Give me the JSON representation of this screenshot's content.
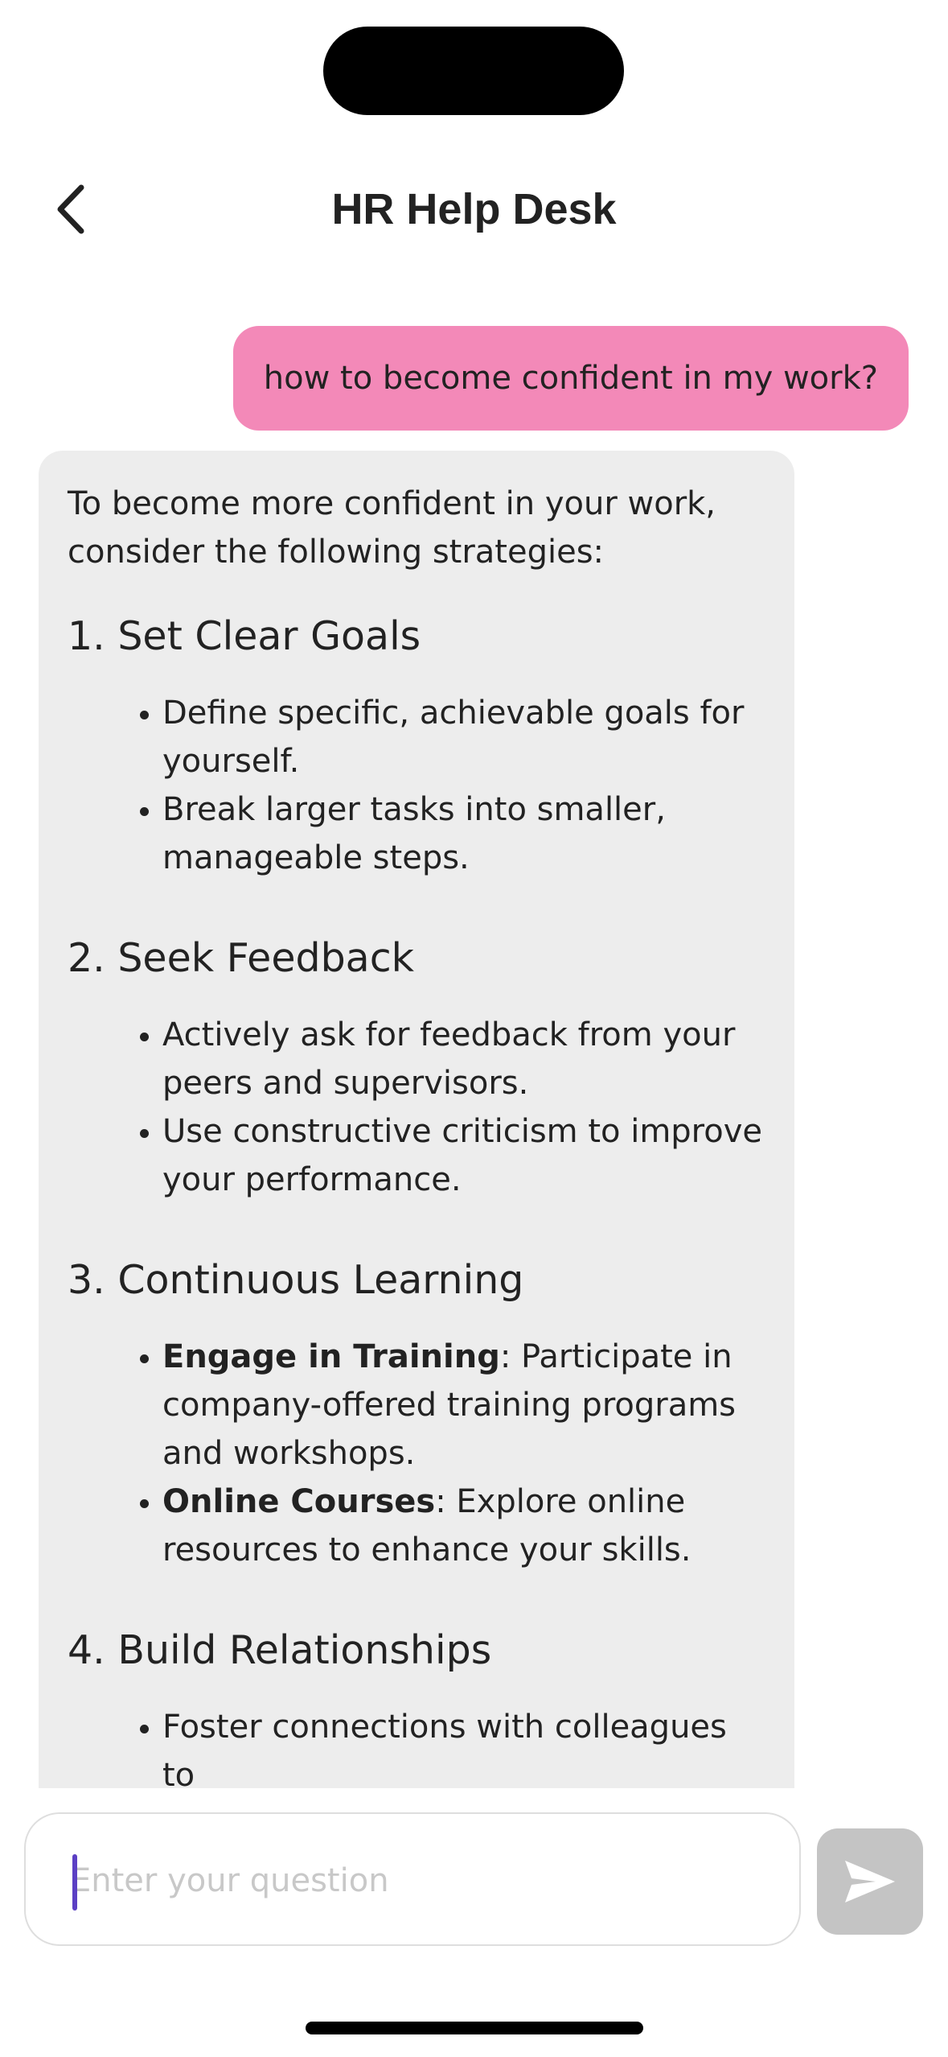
{
  "header": {
    "title": "HR Help Desk",
    "back_icon": "chevron-left-icon"
  },
  "conversation": {
    "user_message": "how to become confident in my work?",
    "bot_message": {
      "intro": "To become more confident in your work, consider the following strategies:",
      "sections": [
        {
          "heading": "1. Set Clear Goals",
          "bullets": [
            {
              "bold": "",
              "text": "Define specific, achievable goals for yourself."
            },
            {
              "bold": "",
              "text": "Break larger tasks into smaller, manageable steps."
            }
          ]
        },
        {
          "heading": "2. Seek Feedback",
          "bullets": [
            {
              "bold": "",
              "text": "Actively ask for feedback from your peers and supervisors."
            },
            {
              "bold": "",
              "text": "Use constructive criticism to improve your performance."
            }
          ]
        },
        {
          "heading": "3. Continuous Learning",
          "bullets": [
            {
              "bold": "Engage in Training",
              "text": ": Participate in company-offered training programs and workshops."
            },
            {
              "bold": "Online Courses",
              "text": ": Explore online resources to enhance your skills."
            }
          ]
        },
        {
          "heading": "4. Build Relationships",
          "bullets": [
            {
              "bold": "",
              "text": "Foster connections with colleagues to"
            }
          ]
        }
      ]
    }
  },
  "composer": {
    "placeholder": "Enter your question",
    "value": "",
    "send_icon": "send-icon"
  },
  "colors": {
    "user_bubble": "#f389b8",
    "bot_bubble": "#ededed",
    "send_button_disabled": "#c4c4c4",
    "caret": "#5b3fc4"
  }
}
